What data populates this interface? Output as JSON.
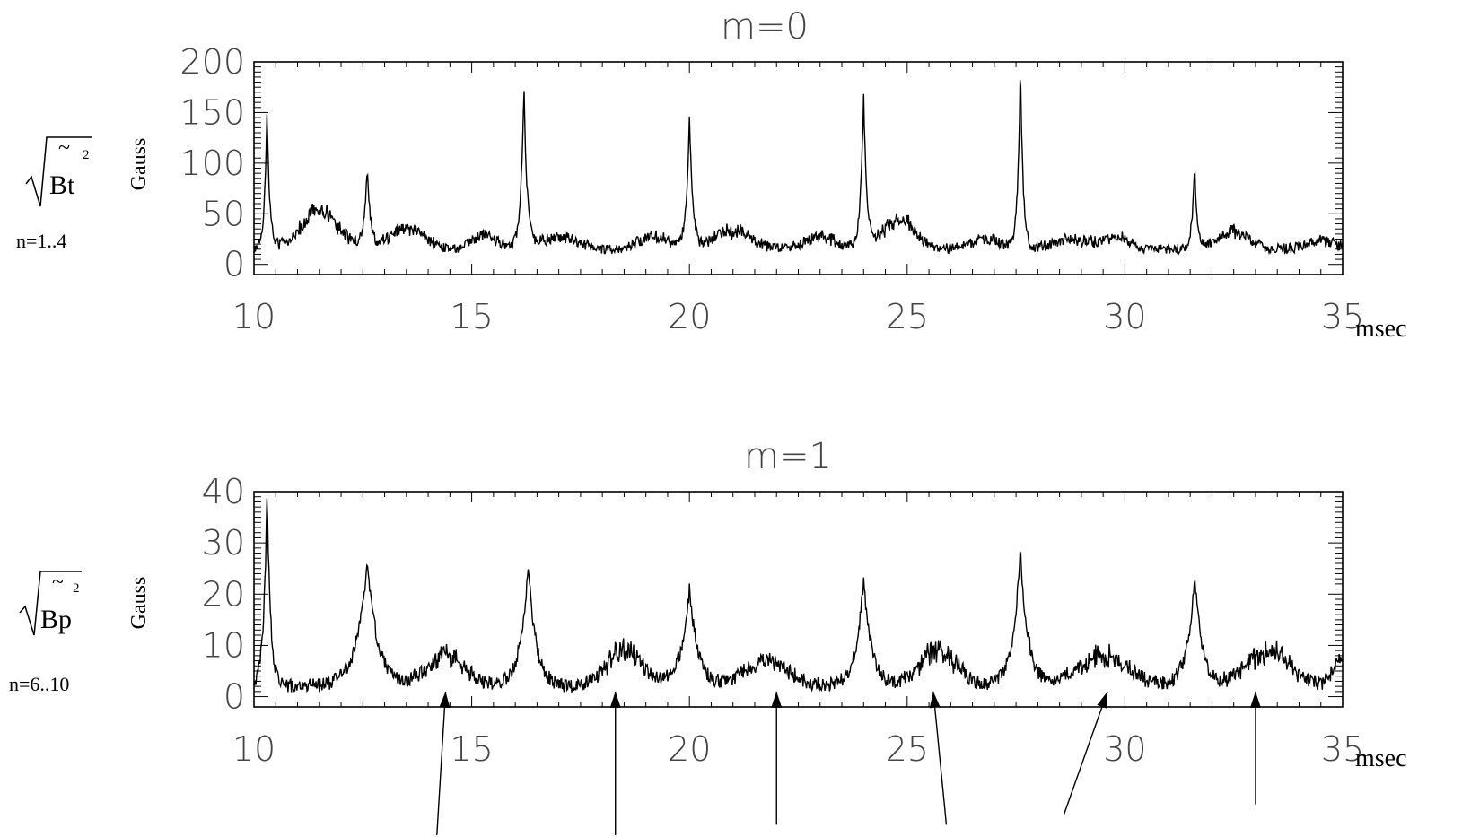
{
  "chart_data": [
    {
      "type": "line",
      "title": "m=0",
      "ylabel": "Gauss",
      "xlabel": "msec",
      "quantity": {
        "symbol": "Bt",
        "tilde": "~",
        "exponent": "2",
        "range_label": "n=1..4"
      },
      "xlim": [
        10,
        35
      ],
      "ylim": [
        -10,
        200
      ],
      "xticks": [
        "10",
        "15",
        "20",
        "25",
        "30",
        "35"
      ],
      "yticks": [
        "0",
        "50",
        "100",
        "150",
        "200"
      ],
      "baseline": 15,
      "peaks": [
        {
          "x": 10.3,
          "y": 150,
          "w": 0.06
        },
        {
          "x": 12.6,
          "y": 95,
          "w": 0.07
        },
        {
          "x": 16.2,
          "y": 178,
          "w": 0.07
        },
        {
          "x": 20.0,
          "y": 148,
          "w": 0.07
        },
        {
          "x": 24.0,
          "y": 168,
          "w": 0.07
        },
        {
          "x": 27.6,
          "y": 200,
          "w": 0.06
        },
        {
          "x": 31.6,
          "y": 98,
          "w": 0.06
        }
      ],
      "bumps": [
        {
          "x": 11.5,
          "y": 38,
          "w": 0.6
        },
        {
          "x": 13.5,
          "y": 20,
          "w": 0.6
        },
        {
          "x": 15.3,
          "y": 15,
          "w": 0.4
        },
        {
          "x": 17.0,
          "y": 12,
          "w": 0.6
        },
        {
          "x": 19.2,
          "y": 12,
          "w": 0.5
        },
        {
          "x": 21.0,
          "y": 18,
          "w": 0.6
        },
        {
          "x": 23.0,
          "y": 12,
          "w": 0.5
        },
        {
          "x": 24.8,
          "y": 30,
          "w": 0.5
        },
        {
          "x": 26.8,
          "y": 10,
          "w": 0.5
        },
        {
          "x": 28.8,
          "y": 10,
          "w": 0.6
        },
        {
          "x": 29.8,
          "y": 12,
          "w": 0.4
        },
        {
          "x": 32.5,
          "y": 18,
          "w": 0.5
        },
        {
          "x": 34.5,
          "y": 8,
          "w": 0.5
        }
      ]
    },
    {
      "type": "line",
      "title": "m=1",
      "ylabel": "Gauss",
      "xlabel": "msec",
      "quantity": {
        "symbol": "Bp",
        "tilde": "~",
        "exponent": "2",
        "range_label": "n=6..10"
      },
      "xlim": [
        10,
        35
      ],
      "ylim": [
        -2,
        40
      ],
      "xticks": [
        "10",
        "15",
        "20",
        "25",
        "30",
        "35"
      ],
      "yticks": [
        "0",
        "10",
        "20",
        "30",
        "40"
      ],
      "baseline": 2,
      "peaks": [
        {
          "x": 10.3,
          "y": 40,
          "w": 0.08
        },
        {
          "x": 12.6,
          "y": 26,
          "w": 0.25
        },
        {
          "x": 16.3,
          "y": 26,
          "w": 0.18
        },
        {
          "x": 20.0,
          "y": 21,
          "w": 0.2
        },
        {
          "x": 24.0,
          "y": 23,
          "w": 0.18
        },
        {
          "x": 27.6,
          "y": 28,
          "w": 0.18
        },
        {
          "x": 31.6,
          "y": 23,
          "w": 0.18
        }
      ],
      "bumps": [
        {
          "x": 14.4,
          "y": 6,
          "w": 0.6
        },
        {
          "x": 18.5,
          "y": 7,
          "w": 0.6
        },
        {
          "x": 21.8,
          "y": 5,
          "w": 0.7
        },
        {
          "x": 25.7,
          "y": 7,
          "w": 0.6
        },
        {
          "x": 29.5,
          "y": 6,
          "w": 0.8
        },
        {
          "x": 33.3,
          "y": 7,
          "w": 0.7
        },
        {
          "x": 35.0,
          "y": 6,
          "w": 0.3
        }
      ],
      "annotations": {
        "arrows": [
          {
            "target_x": 14.4,
            "target_y": 1,
            "tail_x": 14.2,
            "tail_y": -27
          },
          {
            "target_x": 18.3,
            "target_y": 1,
            "tail_x": 18.3,
            "tail_y": -27
          },
          {
            "target_x": 22.0,
            "target_y": 1,
            "tail_x": 22.0,
            "tail_y": -25
          },
          {
            "target_x": 25.6,
            "target_y": 1,
            "tail_x": 25.9,
            "tail_y": -25
          },
          {
            "target_x": 29.6,
            "target_y": 1,
            "tail_x": 28.6,
            "tail_y": -23
          },
          {
            "target_x": 33.0,
            "target_y": 1,
            "tail_x": 33.0,
            "tail_y": -21
          }
        ]
      }
    }
  ]
}
